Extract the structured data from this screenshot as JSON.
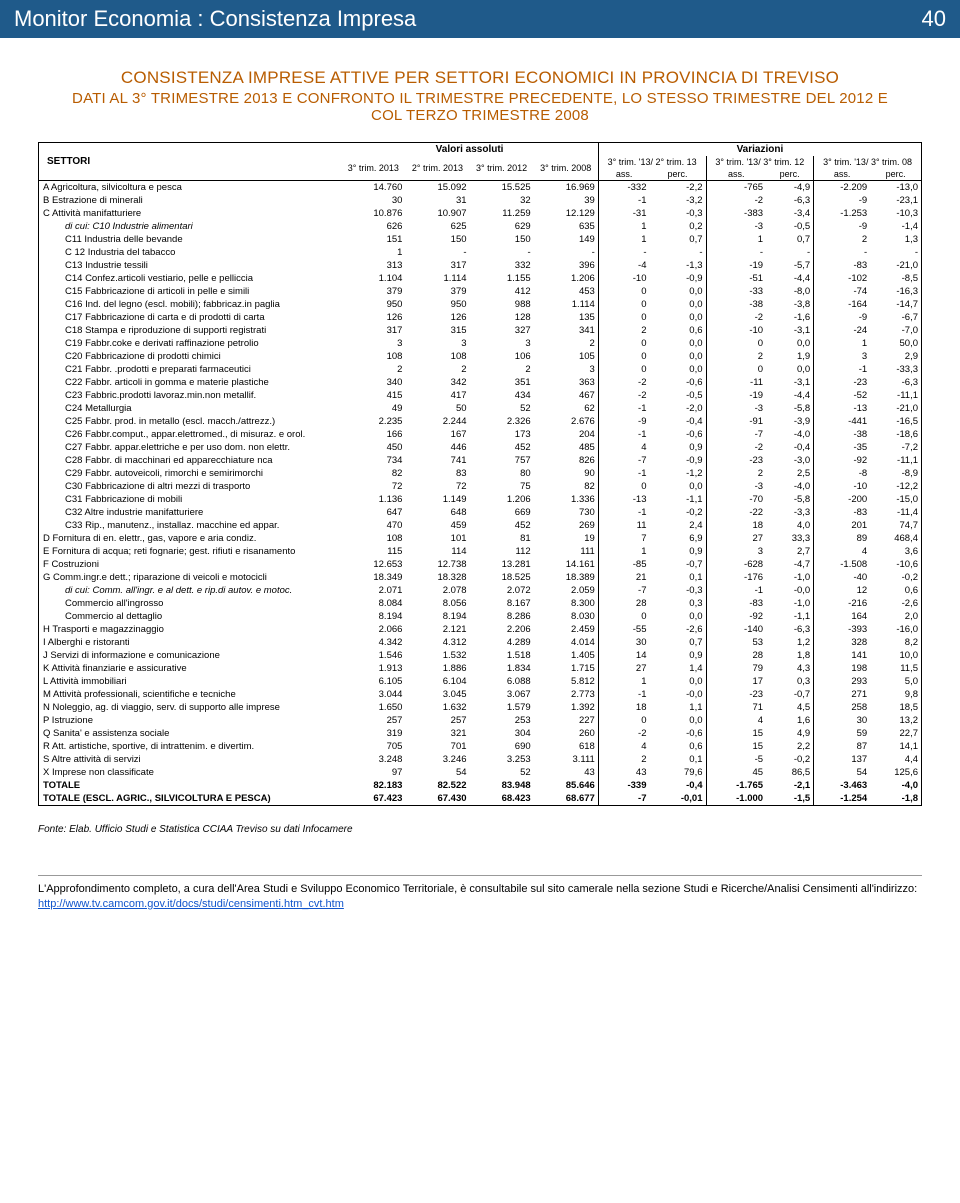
{
  "header": {
    "title": "Monitor Economia : Consistenza Impresa",
    "page": "40"
  },
  "titles": {
    "t1": "CONSISTENZA IMPRESE ATTIVE PER SETTORI ECONOMICI IN PROVINCIA DI TREVISO",
    "t2": "DATI AL 3° TRIMESTRE 2013 E CONFRONTO IL TRIMESTRE PRECEDENTE, LO STESSO TRIMESTRE DEL 2012 E COL TERZO TRIMESTRE 2008"
  },
  "cols": {
    "settori": "SETTORI",
    "valass": "Valori assoluti",
    "variaz": "Variazioni",
    "c1": "3° trim. 2013",
    "c2": "2° trim. 2013",
    "c3": "3° trim. 2012",
    "c4": "3° trim. 2008",
    "g1": "3° trim. '13/ 2° trim. 13",
    "g2": "3° trim. '13/ 3° trim. 12",
    "g3": "3° trim. '13/ 3° trim. 08",
    "ass": "ass.",
    "perc": "perc."
  },
  "rows": [
    {
      "l": "A Agricoltura, silvicoltura e pesca",
      "v": [
        "14.760",
        "15.092",
        "15.525",
        "16.969",
        "-332",
        "-2,2",
        "-765",
        "-4,9",
        "-2.209",
        "-13,0"
      ]
    },
    {
      "l": "B Estrazione di minerali",
      "v": [
        "30",
        "31",
        "32",
        "39",
        "-1",
        "-3,2",
        "-2",
        "-6,3",
        "-9",
        "-23,1"
      ]
    },
    {
      "l": "C Attività manifatturiere",
      "v": [
        "10.876",
        "10.907",
        "11.259",
        "12.129",
        "-31",
        "-0,3",
        "-383",
        "-3,4",
        "-1.253",
        "-10,3"
      ]
    },
    {
      "l": "di cui:   C10 Industrie alimentari",
      "i": 1,
      "v": [
        "626",
        "625",
        "629",
        "635",
        "1",
        "0,2",
        "-3",
        "-0,5",
        "-9",
        "-1,4"
      ]
    },
    {
      "l": "C11 Industria delle bevande",
      "i": 2,
      "v": [
        "151",
        "150",
        "150",
        "149",
        "1",
        "0,7",
        "1",
        "0,7",
        "2",
        "1,3"
      ]
    },
    {
      "l": "C 12 Industria del tabacco",
      "i": 2,
      "v": [
        "1",
        "-",
        "-",
        "-",
        "-",
        "-",
        "-",
        "-",
        "-",
        "-"
      ]
    },
    {
      "l": "C13 Industrie tessili",
      "i": 2,
      "v": [
        "313",
        "317",
        "332",
        "396",
        "-4",
        "-1,3",
        "-19",
        "-5,7",
        "-83",
        "-21,0"
      ]
    },
    {
      "l": "C14 Confez.articoli vestiario, pelle e pelliccia",
      "i": 2,
      "v": [
        "1.104",
        "1.114",
        "1.155",
        "1.206",
        "-10",
        "-0,9",
        "-51",
        "-4,4",
        "-102",
        "-8,5"
      ]
    },
    {
      "l": "C15 Fabbricazione di articoli in pelle e simili",
      "i": 2,
      "v": [
        "379",
        "379",
        "412",
        "453",
        "0",
        "0,0",
        "-33",
        "-8,0",
        "-74",
        "-16,3"
      ]
    },
    {
      "l": "C16 Ind. del legno (escl. mobili); fabbricaz.in paglia",
      "i": 2,
      "v": [
        "950",
        "950",
        "988",
        "1.114",
        "0",
        "0,0",
        "-38",
        "-3,8",
        "-164",
        "-14,7"
      ]
    },
    {
      "l": "C17 Fabbricazione di carta e di prodotti di carta",
      "i": 2,
      "v": [
        "126",
        "126",
        "128",
        "135",
        "0",
        "0,0",
        "-2",
        "-1,6",
        "-9",
        "-6,7"
      ]
    },
    {
      "l": "C18 Stampa e riproduzione di supporti registrati",
      "i": 2,
      "v": [
        "317",
        "315",
        "327",
        "341",
        "2",
        "0,6",
        "-10",
        "-3,1",
        "-24",
        "-7,0"
      ]
    },
    {
      "l": "C19 Fabbr.coke e derivati raffinazione petrolio",
      "i": 2,
      "v": [
        "3",
        "3",
        "3",
        "2",
        "0",
        "0,0",
        "0",
        "0,0",
        "1",
        "50,0"
      ]
    },
    {
      "l": "C20 Fabbricazione di prodotti chimici",
      "i": 2,
      "v": [
        "108",
        "108",
        "106",
        "105",
        "0",
        "0,0",
        "2",
        "1,9",
        "3",
        "2,9"
      ]
    },
    {
      "l": "C21 Fabbr. .prodotti e preparati farmaceutici",
      "i": 2,
      "v": [
        "2",
        "2",
        "2",
        "3",
        "0",
        "0,0",
        "0",
        "0,0",
        "-1",
        "-33,3"
      ]
    },
    {
      "l": "C22 Fabbr. articoli in gomma e materie plastiche",
      "i": 2,
      "v": [
        "340",
        "342",
        "351",
        "363",
        "-2",
        "-0,6",
        "-11",
        "-3,1",
        "-23",
        "-6,3"
      ]
    },
    {
      "l": "C23 Fabbric.prodotti lavoraz.min.non metallif.",
      "i": 2,
      "v": [
        "415",
        "417",
        "434",
        "467",
        "-2",
        "-0,5",
        "-19",
        "-4,4",
        "-52",
        "-11,1"
      ]
    },
    {
      "l": "C24 Metallurgia",
      "i": 2,
      "v": [
        "49",
        "50",
        "52",
        "62",
        "-1",
        "-2,0",
        "-3",
        "-5,8",
        "-13",
        "-21,0"
      ]
    },
    {
      "l": "C25 Fabbr. prod. in metallo (escl. macch./attrezz.)",
      "i": 2,
      "v": [
        "2.235",
        "2.244",
        "2.326",
        "2.676",
        "-9",
        "-0,4",
        "-91",
        "-3,9",
        "-441",
        "-16,5"
      ]
    },
    {
      "l": "C26 Fabbr.comput., appar.elettromed., di misuraz. e orol.",
      "i": 2,
      "v": [
        "166",
        "167",
        "173",
        "204",
        "-1",
        "-0,6",
        "-7",
        "-4,0",
        "-38",
        "-18,6"
      ]
    },
    {
      "l": "C27 Fabbr. appar.elettriche e per uso dom. non elettr.",
      "i": 2,
      "v": [
        "450",
        "446",
        "452",
        "485",
        "4",
        "0,9",
        "-2",
        "-0,4",
        "-35",
        "-7,2"
      ]
    },
    {
      "l": "C28 Fabbr. di macchinari ed apparecchiature nca",
      "i": 2,
      "v": [
        "734",
        "741",
        "757",
        "826",
        "-7",
        "-0,9",
        "-23",
        "-3,0",
        "-92",
        "-11,1"
      ]
    },
    {
      "l": "C29 Fabbr. autoveicoli, rimorchi e semirimorchi",
      "i": 2,
      "v": [
        "82",
        "83",
        "80",
        "90",
        "-1",
        "-1,2",
        "2",
        "2,5",
        "-8",
        "-8,9"
      ]
    },
    {
      "l": "C30 Fabbricazione di altri mezzi di trasporto",
      "i": 2,
      "v": [
        "72",
        "72",
        "75",
        "82",
        "0",
        "0,0",
        "-3",
        "-4,0",
        "-10",
        "-12,2"
      ]
    },
    {
      "l": "C31 Fabbricazione di mobili",
      "i": 2,
      "v": [
        "1.136",
        "1.149",
        "1.206",
        "1.336",
        "-13",
        "-1,1",
        "-70",
        "-5,8",
        "-200",
        "-15,0"
      ]
    },
    {
      "l": "C32 Altre industrie manifatturiere",
      "i": 2,
      "v": [
        "647",
        "648",
        "669",
        "730",
        "-1",
        "-0,2",
        "-22",
        "-3,3",
        "-83",
        "-11,4"
      ]
    },
    {
      "l": "C33 Rip., manutenz., installaz. macchine ed appar.",
      "i": 2,
      "v": [
        "470",
        "459",
        "452",
        "269",
        "11",
        "2,4",
        "18",
        "4,0",
        "201",
        "74,7"
      ]
    },
    {
      "l": "D Fornitura di en. elettr., gas, vapore e aria condiz.",
      "v": [
        "108",
        "101",
        "81",
        "19",
        "7",
        "6,9",
        "27",
        "33,3",
        "89",
        "468,4"
      ]
    },
    {
      "l": "E Fornitura di acqua; reti fognarie; gest. rifiuti e risanamento",
      "v": [
        "115",
        "114",
        "112",
        "111",
        "1",
        "0,9",
        "3",
        "2,7",
        "4",
        "3,6"
      ]
    },
    {
      "l": "F Costruzioni",
      "v": [
        "12.653",
        "12.738",
        "13.281",
        "14.161",
        "-85",
        "-0,7",
        "-628",
        "-4,7",
        "-1.508",
        "-10,6"
      ]
    },
    {
      "l": "G Comm.ingr.e dett.; riparazione di veicoli e motocicli",
      "v": [
        "18.349",
        "18.328",
        "18.525",
        "18.389",
        "21",
        "0,1",
        "-176",
        "-1,0",
        "-40",
        "-0,2"
      ]
    },
    {
      "l": "di cui:   Comm. all'ingr. e al dett. e rip.di autov. e motoc.",
      "i": 1,
      "v": [
        "2.071",
        "2.078",
        "2.072",
        "2.059",
        "-7",
        "-0,3",
        "-1",
        "-0,0",
        "12",
        "0,6"
      ]
    },
    {
      "l": "Commercio all'ingrosso",
      "i": 2,
      "v": [
        "8.084",
        "8.056",
        "8.167",
        "8.300",
        "28",
        "0,3",
        "-83",
        "-1,0",
        "-216",
        "-2,6"
      ]
    },
    {
      "l": "Commercio al dettaglio",
      "i": 2,
      "v": [
        "8.194",
        "8.194",
        "8.286",
        "8.030",
        "0",
        "0,0",
        "-92",
        "-1,1",
        "164",
        "2,0"
      ]
    },
    {
      "l": "H Trasporti e magazzinaggio",
      "v": [
        "2.066",
        "2.121",
        "2.206",
        "2.459",
        "-55",
        "-2,6",
        "-140",
        "-6,3",
        "-393",
        "-16,0"
      ]
    },
    {
      "l": "I Alberghi e ristoranti",
      "v": [
        "4.342",
        "4.312",
        "4.289",
        "4.014",
        "30",
        "0,7",
        "53",
        "1,2",
        "328",
        "8,2"
      ]
    },
    {
      "l": "J Servizi di informazione e comunicazione",
      "v": [
        "1.546",
        "1.532",
        "1.518",
        "1.405",
        "14",
        "0,9",
        "28",
        "1,8",
        "141",
        "10,0"
      ]
    },
    {
      "l": "K Attività finanziarie e assicurative",
      "v": [
        "1.913",
        "1.886",
        "1.834",
        "1.715",
        "27",
        "1,4",
        "79",
        "4,3",
        "198",
        "11,5"
      ]
    },
    {
      "l": "L Attività immobiliari",
      "v": [
        "6.105",
        "6.104",
        "6.088",
        "5.812",
        "1",
        "0,0",
        "17",
        "0,3",
        "293",
        "5,0"
      ]
    },
    {
      "l": "M Attività professionali, scientifiche e tecniche",
      "v": [
        "3.044",
        "3.045",
        "3.067",
        "2.773",
        "-1",
        "-0,0",
        "-23",
        "-0,7",
        "271",
        "9,8"
      ]
    },
    {
      "l": "N Noleggio, ag. di viaggio, serv. di supporto alle imprese",
      "v": [
        "1.650",
        "1.632",
        "1.579",
        "1.392",
        "18",
        "1,1",
        "71",
        "4,5",
        "258",
        "18,5"
      ]
    },
    {
      "l": "P Istruzione",
      "v": [
        "257",
        "257",
        "253",
        "227",
        "0",
        "0,0",
        "4",
        "1,6",
        "30",
        "13,2"
      ]
    },
    {
      "l": "Q Sanita' e assistenza sociale",
      "v": [
        "319",
        "321",
        "304",
        "260",
        "-2",
        "-0,6",
        "15",
        "4,9",
        "59",
        "22,7"
      ]
    },
    {
      "l": "R Att. artistiche, sportive, di intrattenim. e divertim.",
      "v": [
        "705",
        "701",
        "690",
        "618",
        "4",
        "0,6",
        "15",
        "2,2",
        "87",
        "14,1"
      ]
    },
    {
      "l": "S Altre attività di servizi",
      "v": [
        "3.248",
        "3.246",
        "3.253",
        "3.111",
        "2",
        "0,1",
        "-5",
        "-0,2",
        "137",
        "4,4"
      ]
    },
    {
      "l": "X Imprese non classificate",
      "v": [
        "97",
        "54",
        "52",
        "43",
        "43",
        "79,6",
        "45",
        "86,5",
        "54",
        "125,6"
      ]
    },
    {
      "l": "TOTALE",
      "b": 1,
      "v": [
        "82.183",
        "82.522",
        "83.948",
        "85.646",
        "-339",
        "-0,4",
        "-1.765",
        "-2,1",
        "-3.463",
        "-4,0"
      ]
    },
    {
      "l": "TOTALE (ESCL. AGRIC., SILVICOLTURA E PESCA)",
      "b": 1,
      "v": [
        "67.423",
        "67.430",
        "68.423",
        "68.677",
        "-7",
        "-0,01",
        "-1.000",
        "-1,5",
        "-1.254",
        "-1,8"
      ]
    }
  ],
  "fonte": "Fonte: Elab. Ufficio Studi e Statistica CCIAA Treviso su dati Infocamere",
  "footer": {
    "text": "L'Approfondimento completo, a cura dell'Area Studi e Sviluppo Economico Territoriale, è consultabile sul sito camerale nella sezione Studi e Ricerche/Analisi Censimenti all'indirizzo:",
    "link": "http://www.tv.camcom.gov.it/docs/studi/censimenti.htm_cvt.htm"
  }
}
